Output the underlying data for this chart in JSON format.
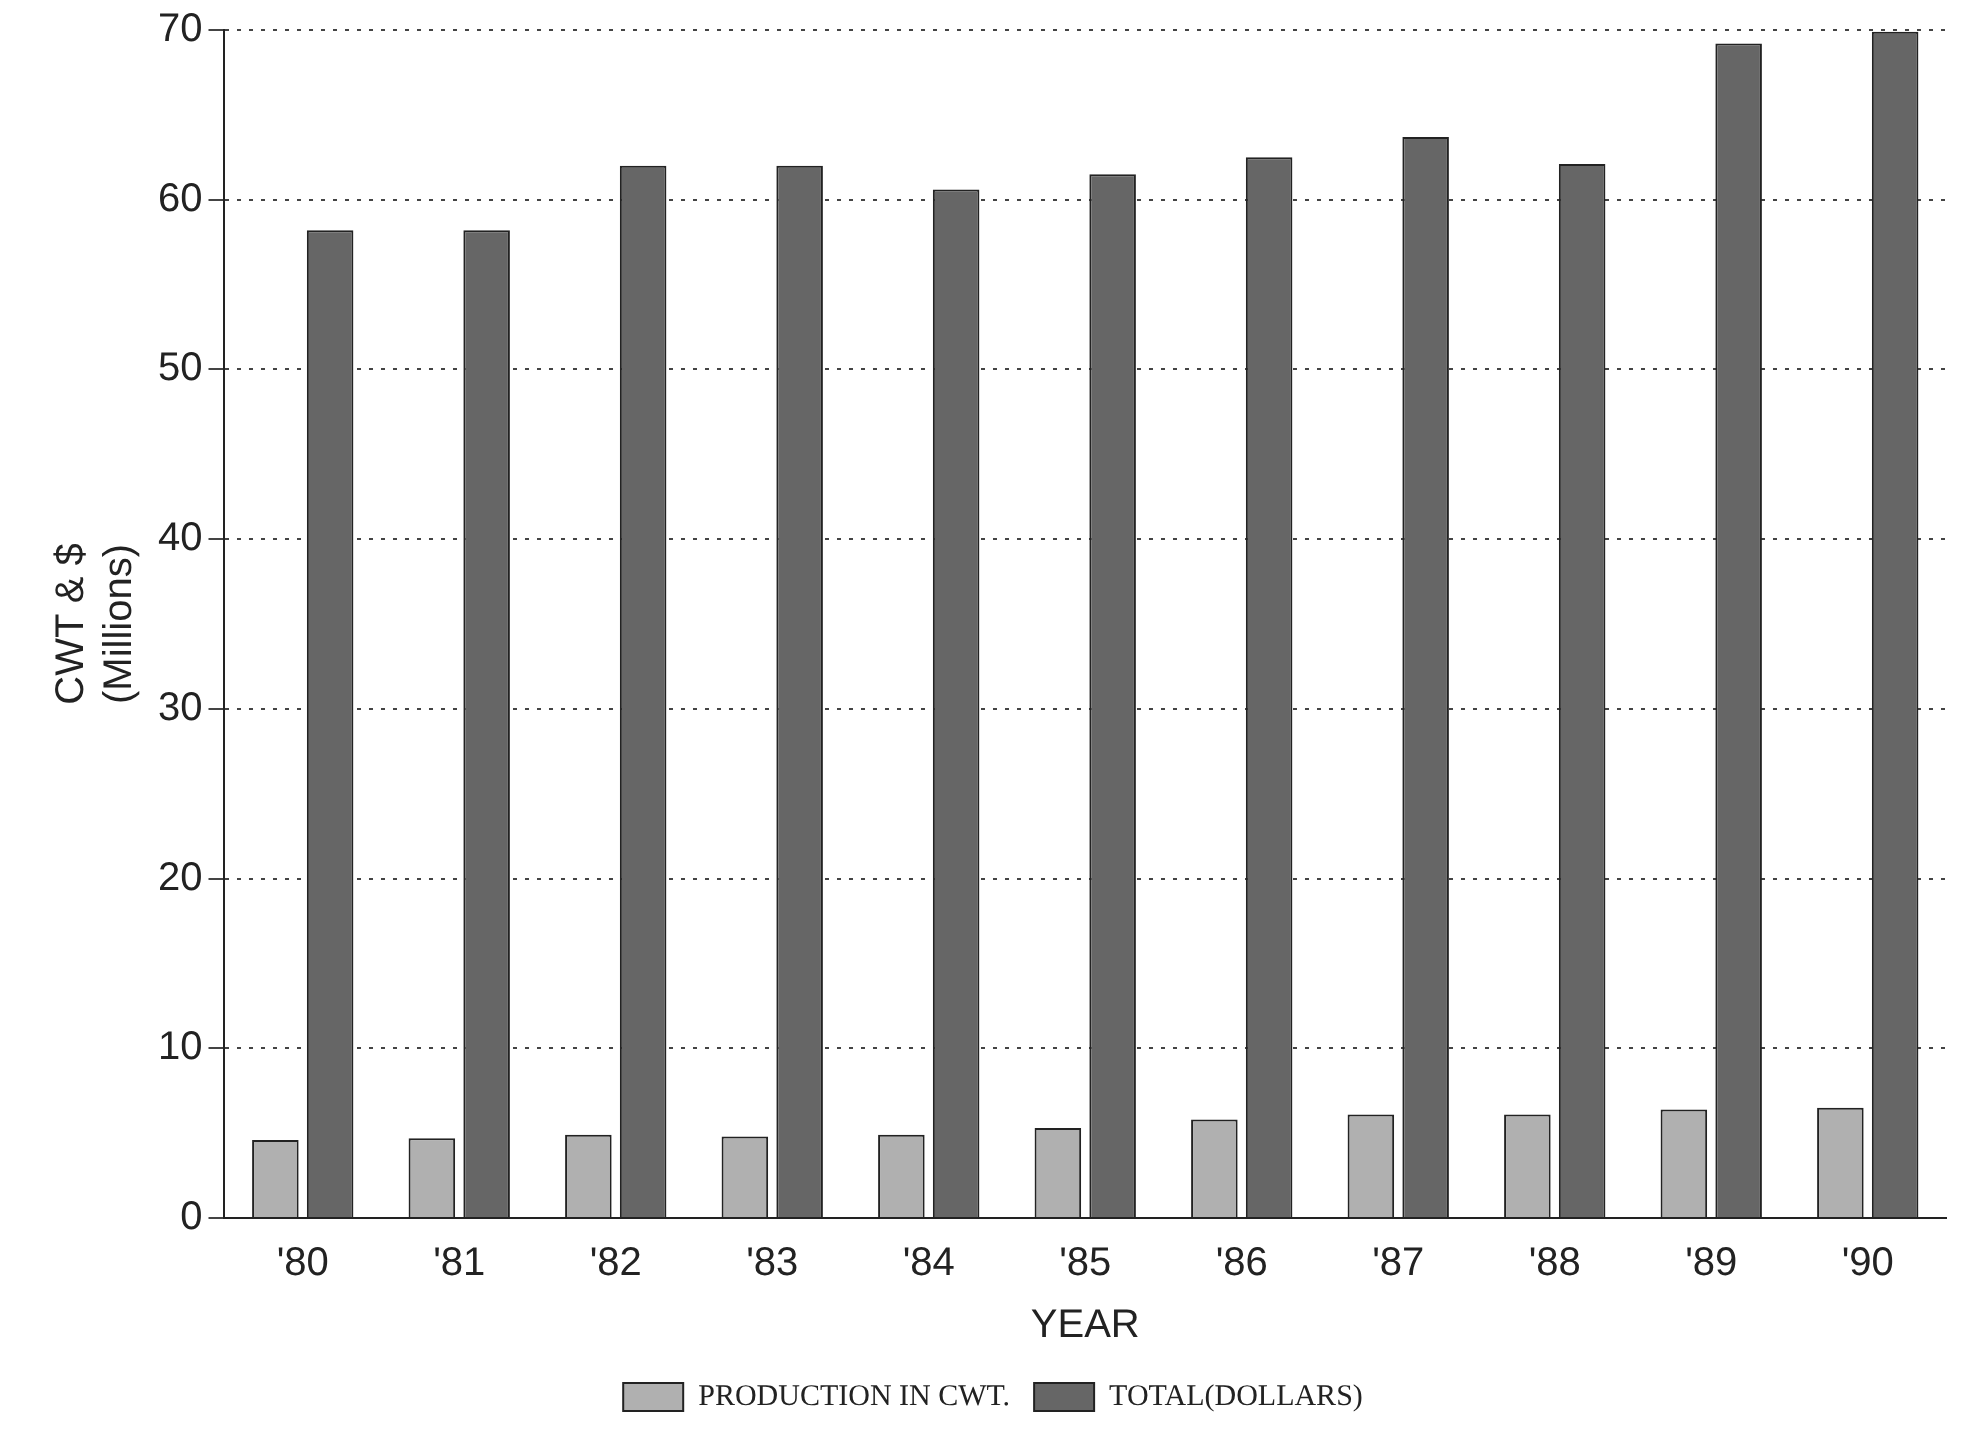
{
  "chart_data": {
    "type": "bar",
    "xlabel": "YEAR",
    "ylabel": "CWT & $\n(Millions)",
    "categories": [
      "'80",
      "'81",
      "'82",
      "'83",
      "'84",
      "'85",
      "'86",
      "'87",
      "'88",
      "'89",
      "'90"
    ],
    "series": [
      {
        "name": "PRODUCTION IN CWT.",
        "color": "#b0b0b0",
        "values": [
          4.6,
          4.7,
          4.9,
          4.8,
          4.9,
          5.3,
          5.8,
          6.1,
          6.1,
          6.4,
          6.5
        ]
      },
      {
        "name": "TOTAL(DOLLARS)",
        "color": "#666666",
        "values": [
          58.2,
          58.2,
          62,
          62,
          60.6,
          61.5,
          62.5,
          63.7,
          62.1,
          69.2,
          69.9
        ]
      }
    ],
    "ylim": [
      0,
      70
    ],
    "yticks": [
      0,
      10,
      20,
      30,
      40,
      50,
      60,
      70
    ],
    "grid": "y",
    "legend": "bottom"
  }
}
